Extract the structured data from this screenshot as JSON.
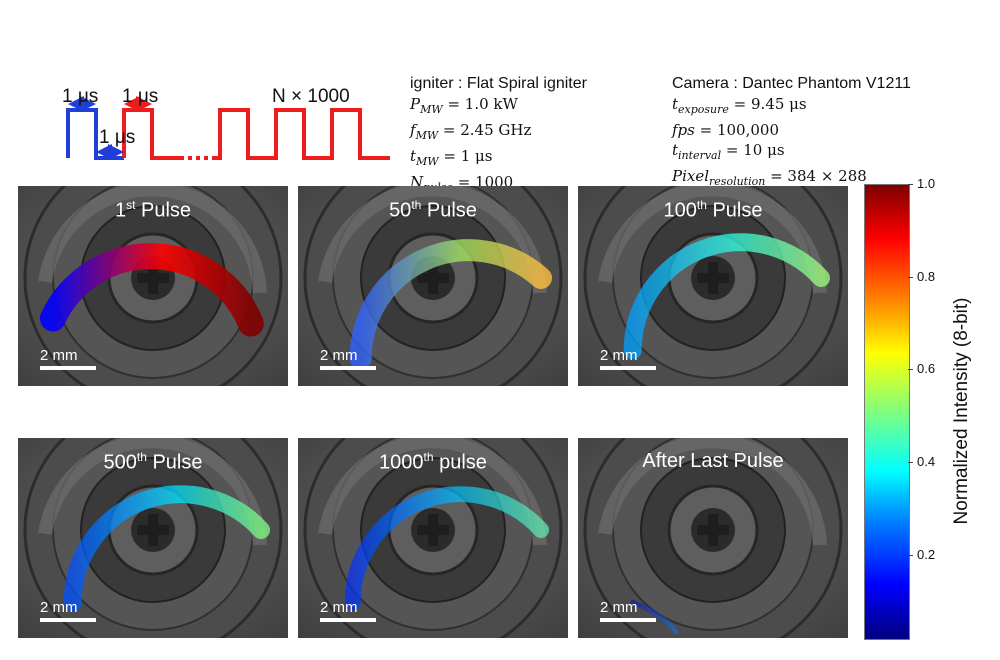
{
  "pulse_diagram": {
    "label_width_1": "1 μs",
    "label_gap": "1 μs",
    "label_width_2": "1 μs",
    "label_count": "N × 1000",
    "colors": {
      "first_pulse": "#1f3fd8",
      "pulse_train": "#ee1c1c",
      "arrow": "#1f3fd8"
    }
  },
  "igniter_params": {
    "heading": "igniter : Flat Spiral igniter",
    "lines": [
      {
        "var": "P",
        "sub": "MW",
        "val": "= 1.0 kW"
      },
      {
        "var": "f",
        "sub": "MW",
        "val": "= 2.45 GHz"
      },
      {
        "var": "t",
        "sub": "MW",
        "val": "= 1 μs"
      },
      {
        "var": "N",
        "sub": "pulse",
        "val": "= 1000"
      }
    ]
  },
  "camera_params": {
    "heading": "Camera : Dantec Phantom V1211",
    "lines": [
      {
        "var": "t",
        "sub": "exposure",
        "val": "= 9.45 μs"
      },
      {
        "var": "fps",
        "sub": "",
        "val": "= 100,000"
      },
      {
        "var": "t",
        "sub": "interval",
        "val": "= 10 μs"
      },
      {
        "var": "Pixel",
        "sub": "resolution",
        "val": "= 384 × 288"
      }
    ]
  },
  "panels": [
    {
      "num": "1",
      "sup": "st",
      "rest": "Pulse",
      "scale": "2 mm"
    },
    {
      "num": "50",
      "sup": "th",
      "rest": "Pulse",
      "scale": "2 mm"
    },
    {
      "num": "100",
      "sup": "th",
      "rest": "Pulse",
      "scale": "2 mm"
    },
    {
      "num": "500",
      "sup": "th",
      "rest": "Pulse",
      "scale": "2 mm"
    },
    {
      "num": "1000",
      "sup": "th",
      "rest": "pulse",
      "scale": "2 mm"
    },
    {
      "num": "",
      "sup": "",
      "rest": "After Last Pulse",
      "scale": "2 mm"
    }
  ],
  "colorbar": {
    "label": "Normalized Intensity (8-bit)",
    "ticks": [
      "1.0",
      "0.8",
      "0.6",
      "0.4",
      "0.2"
    ],
    "tick_values": [
      1.0,
      0.8,
      0.6,
      0.4,
      0.2
    ],
    "min": 0.02,
    "max": 1.0
  }
}
